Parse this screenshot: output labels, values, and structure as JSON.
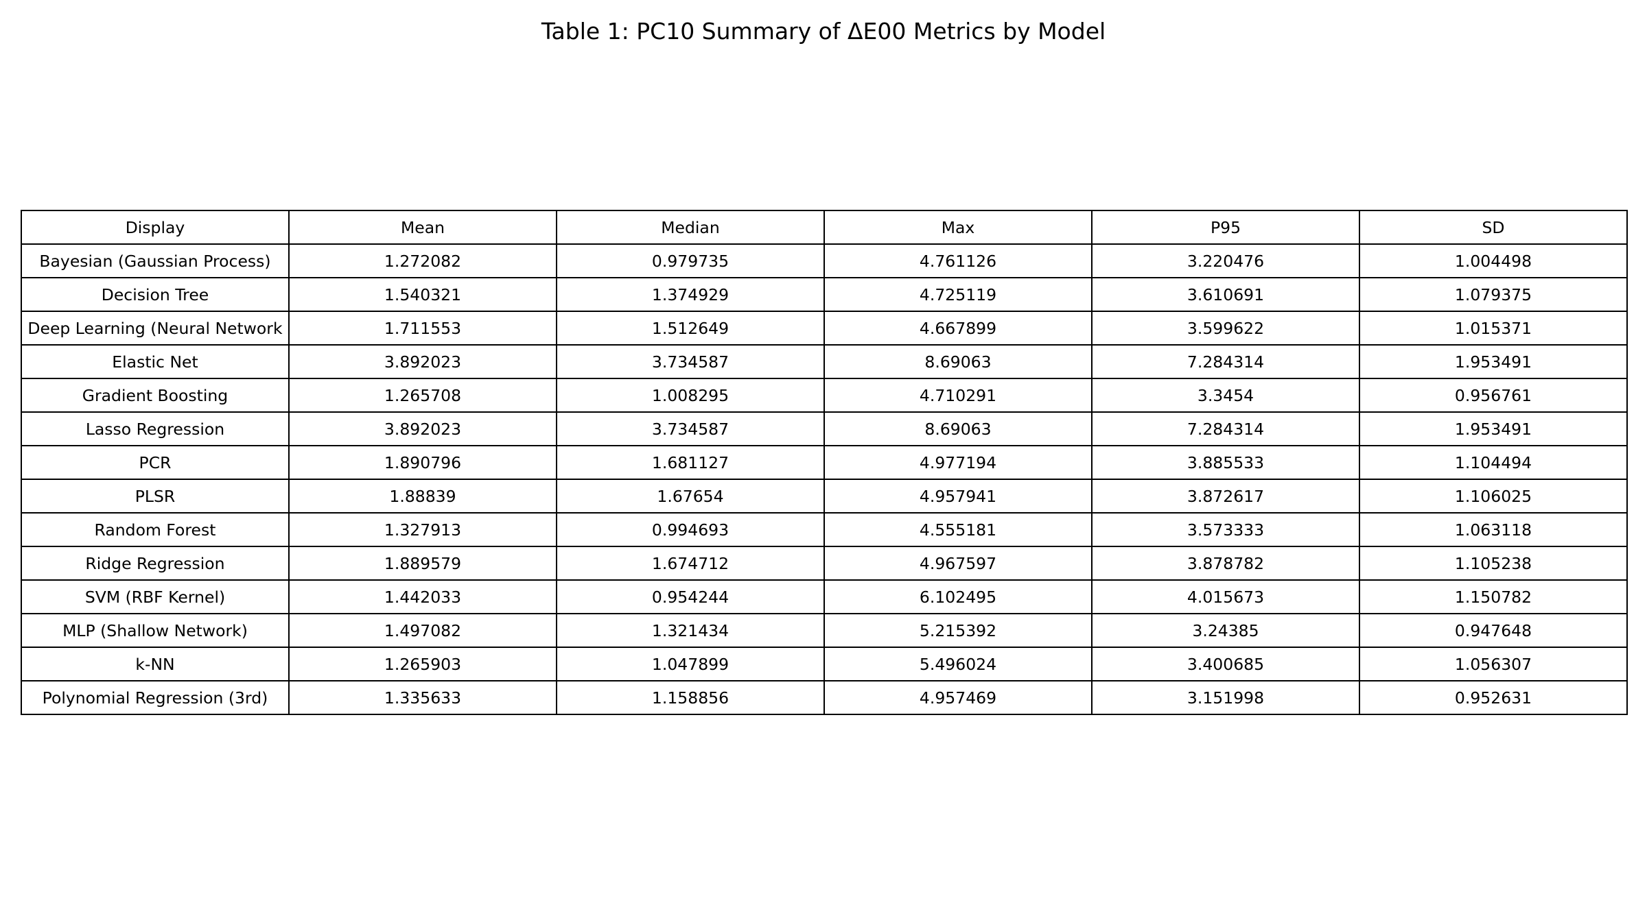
{
  "chart_data": {
    "type": "table",
    "title": "Table 1: PC10 Summary of ΔE00 Metrics by Model",
    "columns": [
      "Display",
      "Mean",
      "Median",
      "Max",
      "P95",
      "SD"
    ],
    "rows": [
      [
        "Bayesian (Gaussian Process)",
        "1.272082",
        "0.979735",
        "4.761126",
        "3.220476",
        "1.004498"
      ],
      [
        "Decision Tree",
        "1.540321",
        "1.374929",
        "4.725119",
        "3.610691",
        "1.079375"
      ],
      [
        "Deep Learning (Neural Network",
        "1.711553",
        "1.512649",
        "4.667899",
        "3.599622",
        "1.015371"
      ],
      [
        "Elastic Net",
        "3.892023",
        "3.734587",
        "8.69063",
        "7.284314",
        "1.953491"
      ],
      [
        "Gradient Boosting",
        "1.265708",
        "1.008295",
        "4.710291",
        "3.3454",
        "0.956761"
      ],
      [
        "Lasso Regression",
        "3.892023",
        "3.734587",
        "8.69063",
        "7.284314",
        "1.953491"
      ],
      [
        "PCR",
        "1.890796",
        "1.681127",
        "4.977194",
        "3.885533",
        "1.104494"
      ],
      [
        "PLSR",
        "1.88839",
        "1.67654",
        "4.957941",
        "3.872617",
        "1.106025"
      ],
      [
        "Random Forest",
        "1.327913",
        "0.994693",
        "4.555181",
        "3.573333",
        "1.063118"
      ],
      [
        "Ridge Regression",
        "1.889579",
        "1.674712",
        "4.967597",
        "3.878782",
        "1.105238"
      ],
      [
        "SVM (RBF Kernel)",
        "1.442033",
        "0.954244",
        "6.102495",
        "4.015673",
        "1.150782"
      ],
      [
        "MLP (Shallow Network)",
        "1.497082",
        "1.321434",
        "5.215392",
        "3.24385",
        "0.947648"
      ],
      [
        "k-NN",
        "1.265903",
        "1.047899",
        "5.496024",
        "3.400685",
        "1.056307"
      ],
      [
        "Polynomial Regression (3rd)",
        "1.335633",
        "1.158856",
        "4.957469",
        "3.151998",
        "0.952631"
      ]
    ]
  }
}
